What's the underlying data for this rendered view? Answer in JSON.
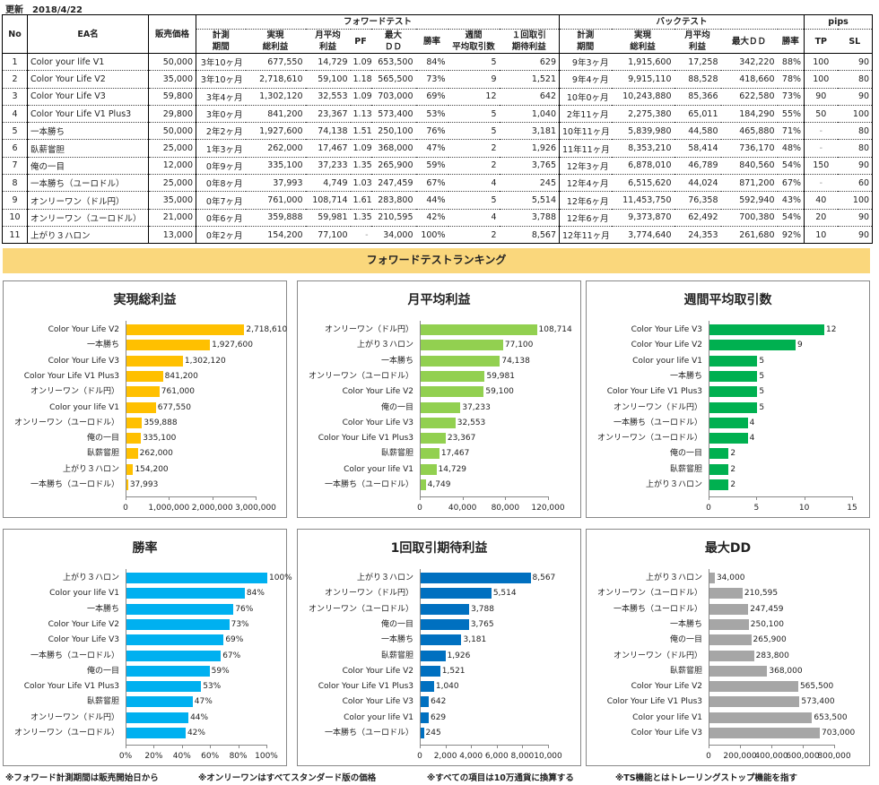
{
  "update": {
    "label": "更新",
    "date": "2018/4/22"
  },
  "table": {
    "groups": {
      "forward": "フォワードテスト",
      "back": "バックテスト",
      "pips": "pips"
    },
    "fixed_headers": [
      "No",
      "EA名",
      "販売価格"
    ],
    "forward_headers": [
      "計測\n期間",
      "実現\n総利益",
      "月平均\n利益",
      "PF",
      "最大\nＤＤ",
      "勝率",
      "週間\n平均取引数",
      "１回取引\n期待利益"
    ],
    "back_headers": [
      "計測\n期間",
      "実現\n総利益",
      "月平均\n利益",
      "最大ＤＤ",
      "勝率"
    ],
    "pips_headers": [
      "TP",
      "SL"
    ],
    "rows": [
      [
        "1",
        "Color your life V1",
        "50,000",
        "3年10ヶ月",
        "677,550",
        "14,729",
        "1.09",
        "653,500",
        "84%",
        "5",
        "629",
        "9年3ヶ月",
        "1,915,600",
        "17,258",
        "342,220",
        "88%",
        "100",
        "90"
      ],
      [
        "2",
        "Color Your Life V2",
        "35,000",
        "3年10ヶ月",
        "2,718,610",
        "59,100",
        "1.18",
        "565,500",
        "73%",
        "9",
        "1,521",
        "9年4ヶ月",
        "9,915,110",
        "88,528",
        "418,660",
        "78%",
        "100",
        "80"
      ],
      [
        "3",
        "Color Your Life V3",
        "59,800",
        "3年4ヶ月",
        "1,302,120",
        "32,553",
        "1.09",
        "703,000",
        "69%",
        "12",
        "642",
        "10年0ヶ月",
        "10,243,880",
        "85,366",
        "622,580",
        "73%",
        "90",
        "90"
      ],
      [
        "4",
        "Color Your Life V1 Plus3",
        "29,800",
        "3年0ヶ月",
        "841,200",
        "23,367",
        "1.13",
        "573,400",
        "53%",
        "5",
        "1,040",
        "2年11ヶ月",
        "2,275,380",
        "65,011",
        "184,290",
        "55%",
        "50",
        "100"
      ],
      [
        "5",
        "一本勝ち",
        "50,000",
        "2年2ヶ月",
        "1,927,600",
        "74,138",
        "1.51",
        "250,100",
        "76%",
        "5",
        "3,181",
        "10年11ヶ月",
        "5,839,980",
        "44,580",
        "465,880",
        "71%",
        "-",
        "80"
      ],
      [
        "6",
        "臥薪嘗胆",
        "25,000",
        "1年3ヶ月",
        "262,000",
        "17,467",
        "1.09",
        "368,000",
        "47%",
        "2",
        "1,926",
        "11年11ヶ月",
        "8,353,210",
        "58,414",
        "736,170",
        "48%",
        "-",
        "80"
      ],
      [
        "7",
        "俺の一目",
        "12,000",
        "0年9ヶ月",
        "335,100",
        "37,233",
        "1.35",
        "265,900",
        "59%",
        "2",
        "3,765",
        "12年3ヶ月",
        "6,878,010",
        "46,789",
        "840,560",
        "54%",
        "150",
        "90"
      ],
      [
        "8",
        "一本勝ち（ユーロドル）",
        "25,000",
        "0年8ヶ月",
        "37,993",
        "4,749",
        "1.03",
        "247,459",
        "67%",
        "4",
        "245",
        "12年4ヶ月",
        "6,515,620",
        "44,024",
        "871,200",
        "67%",
        "-",
        "60"
      ],
      [
        "9",
        "オンリーワン（ドル円）",
        "35,000",
        "0年7ヶ月",
        "761,000",
        "108,714",
        "1.61",
        "283,800",
        "44%",
        "5",
        "5,514",
        "12年6ヶ月",
        "11,453,750",
        "76,358",
        "592,940",
        "43%",
        "40",
        "100"
      ],
      [
        "10",
        "オンリーワン（ユーロドル）",
        "21,000",
        "0年6ヶ月",
        "359,888",
        "59,981",
        "1.35",
        "210,595",
        "42%",
        "4",
        "3,788",
        "12年6ヶ月",
        "9,373,870",
        "62,492",
        "700,380",
        "54%",
        "20",
        "90"
      ],
      [
        "11",
        "上がり３ハロン",
        "13,000",
        "0年2ヶ月",
        "154,200",
        "77,100",
        "-",
        "34,000",
        "100%",
        "2",
        "8,567",
        "12年11ヶ月",
        "3,774,640",
        "24,353",
        "261,680",
        "92%",
        "10",
        "90"
      ]
    ]
  },
  "banner": "フォワードテストランキング",
  "chart_data": [
    {
      "type": "bar",
      "title": "実現総利益",
      "color": "#FFC000",
      "xlim": [
        0,
        3000000
      ],
      "ticks": [
        "0",
        "1,000,000",
        "2,000,000",
        "3,000,000"
      ],
      "categories": [
        "Color Your Life V2",
        "一本勝ち",
        "Color Your Life V3",
        "Color Your Life V1 Plus3",
        "オンリーワン（ドル円）",
        "Color your life V1",
        "オンリーワン（ユーロドル）",
        "俺の一目",
        "臥薪嘗胆",
        "上がり３ハロン",
        "一本勝ち（ユーロドル）"
      ],
      "values": [
        2718610,
        1927600,
        1302120,
        841200,
        761000,
        677550,
        359888,
        335100,
        262000,
        154200,
        37993
      ],
      "labels": [
        "2,718,610",
        "1,927,600",
        "1,302,120",
        "841,200",
        "761,000",
        "677,550",
        "359,888",
        "335,100",
        "262,000",
        "154,200",
        "37,993"
      ]
    },
    {
      "type": "bar",
      "title": "月平均利益",
      "color": "#92D050",
      "xlim": [
        0,
        120000
      ],
      "ticks": [
        "0",
        "40,000",
        "80,000",
        "120,000"
      ],
      "categories": [
        "オンリーワン（ドル円）",
        "上がり３ハロン",
        "一本勝ち",
        "オンリーワン（ユーロドル）",
        "Color Your Life V2",
        "俺の一目",
        "Color Your Life V3",
        "Color Your Life V1 Plus3",
        "臥薪嘗胆",
        "Color your life V1",
        "一本勝ち（ユーロドル）"
      ],
      "values": [
        108714,
        77100,
        74138,
        59981,
        59100,
        37233,
        32553,
        23367,
        17467,
        14729,
        4749
      ],
      "labels": [
        "108,714",
        "77,100",
        "74,138",
        "59,981",
        "59,100",
        "37,233",
        "32,553",
        "23,367",
        "17,467",
        "14,729",
        "4,749"
      ]
    },
    {
      "type": "bar",
      "title": "週間平均取引数",
      "color": "#00B050",
      "xlim": [
        0,
        15
      ],
      "ticks": [
        "0",
        "5",
        "10",
        "15"
      ],
      "categories": [
        "Color Your Life V3",
        "Color Your Life V2",
        "Color your life V1",
        "一本勝ち",
        "Color Your Life V1 Plus3",
        "オンリーワン（ドル円）",
        "一本勝ち（ユーロドル）",
        "オンリーワン（ユーロドル）",
        "俺の一目",
        "臥薪嘗胆",
        "上がり３ハロン"
      ],
      "values": [
        12,
        9,
        5,
        5,
        5,
        5,
        4,
        4,
        2,
        2,
        2
      ],
      "labels": [
        "12",
        "9",
        "5",
        "5",
        "5",
        "5",
        "4",
        "4",
        "2",
        "2",
        "2"
      ]
    },
    {
      "type": "bar",
      "title": "勝率",
      "color": "#00B0F0",
      "xlim": [
        0,
        100
      ],
      "ticks": [
        "0%",
        "20%",
        "40%",
        "60%",
        "80%",
        "100%"
      ],
      "categories": [
        "上がり３ハロン",
        "Color your life V1",
        "一本勝ち",
        "Color Your Life V2",
        "Color Your Life V3",
        "一本勝ち（ユーロドル）",
        "俺の一目",
        "Color Your Life V1 Plus3",
        "臥薪嘗胆",
        "オンリーワン（ドル円）",
        "オンリーワン（ユーロドル）"
      ],
      "values": [
        100,
        84,
        76,
        73,
        69,
        67,
        59,
        53,
        47,
        44,
        42
      ],
      "labels": [
        "100%",
        "84%",
        "76%",
        "73%",
        "69%",
        "67%",
        "59%",
        "53%",
        "47%",
        "44%",
        "42%"
      ]
    },
    {
      "type": "bar",
      "title": "1回取引期待利益",
      "color": "#0070C0",
      "xlim": [
        0,
        10000
      ],
      "ticks": [
        "0",
        "2,000",
        "4,000",
        "6,000",
        "8,000",
        "10,000"
      ],
      "categories": [
        "上がり３ハロン",
        "オンリーワン（ドル円）",
        "オンリーワン（ユーロドル）",
        "俺の一目",
        "一本勝ち",
        "臥薪嘗胆",
        "Color Your Life V2",
        "Color Your Life V1 Plus3",
        "Color Your Life V3",
        "Color your life V1",
        "一本勝ち（ユーロドル）"
      ],
      "values": [
        8567,
        5514,
        3788,
        3765,
        3181,
        1926,
        1521,
        1040,
        642,
        629,
        245
      ],
      "labels": [
        "8,567",
        "5,514",
        "3,788",
        "3,765",
        "3,181",
        "1,926",
        "1,521",
        "1,040",
        "642",
        "629",
        "245"
      ]
    },
    {
      "type": "bar",
      "title": "最大DD",
      "color": "#A6A6A6",
      "xlim": [
        0,
        800000
      ],
      "ticks": [
        "0",
        "200,000",
        "400,000",
        "600,000",
        "800,000"
      ],
      "categories": [
        "上がり３ハロン",
        "オンリーワン（ユーロドル）",
        "一本勝ち（ユーロドル）",
        "一本勝ち",
        "俺の一目",
        "オンリーワン（ドル円）",
        "臥薪嘗胆",
        "Color Your Life V2",
        "Color Your Life V1 Plus3",
        "Color your life V1",
        "Color Your Life V3"
      ],
      "values": [
        34000,
        210595,
        247459,
        250100,
        265900,
        283800,
        368000,
        565500,
        573400,
        653500,
        703000
      ],
      "labels": [
        "34,000",
        "210,595",
        "247,459",
        "250,100",
        "265,900",
        "283,800",
        "368,000",
        "565,500",
        "573,400",
        "653,500",
        "703,000"
      ]
    }
  ],
  "footnotes": [
    "※フォワード計測期間は販売開始日から",
    "※オンリーワンはすべてスタンダード版の価格",
    "※すべての項目は10万通貨に換算する",
    "※TS機能とはトレーリングストップ機能を指す"
  ]
}
